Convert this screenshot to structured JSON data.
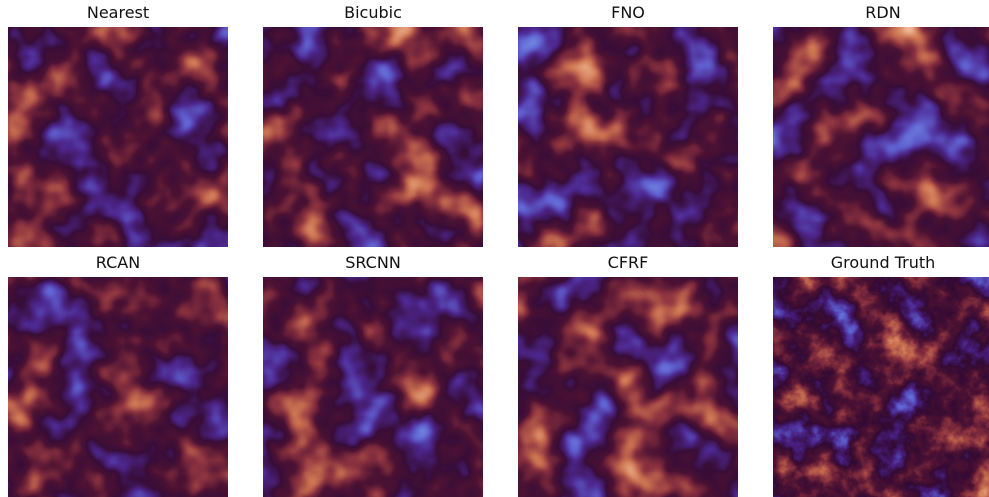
{
  "panels": [
    {
      "title": "Nearest"
    },
    {
      "title": "Bicubic"
    },
    {
      "title": "FNO"
    },
    {
      "title": "RDN"
    },
    {
      "title": "RCAN"
    },
    {
      "title": "SRCNN"
    },
    {
      "title": "CFRF"
    },
    {
      "title": "Ground Truth"
    }
  ]
}
